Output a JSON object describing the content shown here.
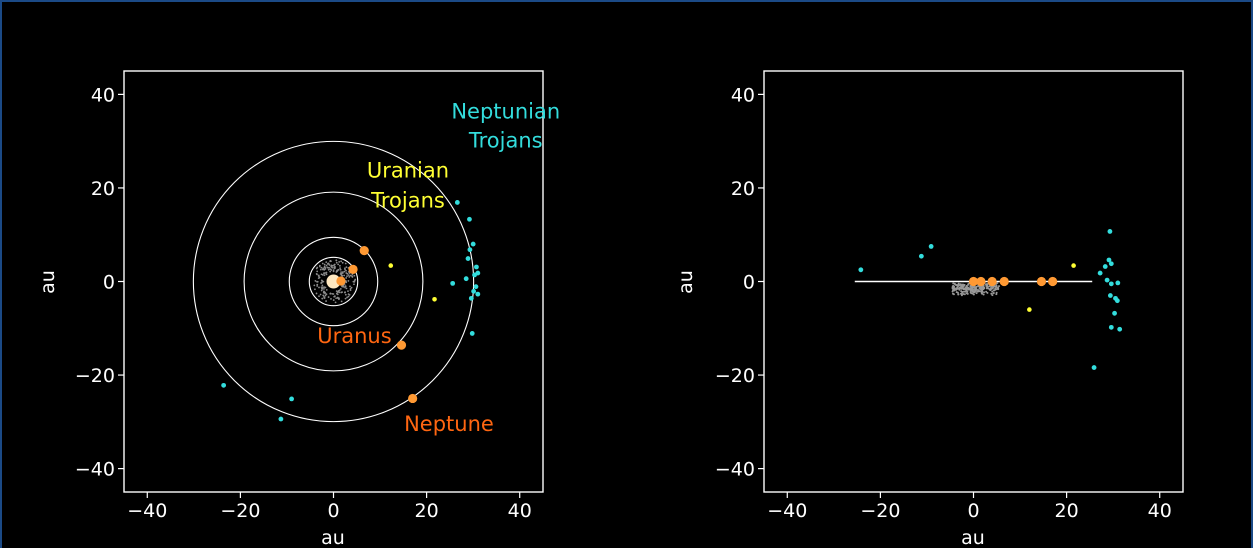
{
  "chart_data": [
    {
      "type": "scatter",
      "view": "top-down (x-y plane)",
      "xlabel": "au",
      "ylabel": "au",
      "xlim": [
        -45,
        45
      ],
      "ylim": [
        -45,
        45
      ],
      "xticks": [
        -40,
        -20,
        0,
        20,
        40
      ],
      "yticks": [
        -40,
        -20,
        0,
        20,
        40
      ],
      "grid": false,
      "orbits_au": [
        5.2,
        9.5,
        19.2,
        30.1
      ],
      "orbit_color": "#ffffff",
      "sun": {
        "x": 0,
        "y": 0,
        "color": "#ffe8c0"
      },
      "planets": [
        {
          "x": 1.6,
          "y": 0.1,
          "color": "#ff9933"
        },
        {
          "x": 4.2,
          "y": 2.6,
          "color": "#ff9933"
        },
        {
          "x": 6.6,
          "y": 6.6,
          "color": "#ff9933"
        },
        {
          "x": 14.6,
          "y": -13.6,
          "label": "Uranus",
          "color": "#ff9933"
        },
        {
          "x": 17.0,
          "y": -25.0,
          "label": "Neptune",
          "color": "#ff9933"
        }
      ],
      "uranian_trojans": {
        "color": "#ffff33",
        "points": [
          [
            12.3,
            3.4
          ],
          [
            21.7,
            -3.8
          ]
        ]
      },
      "neptunian_trojans": {
        "color": "#33dddd",
        "points": [
          [
            26.6,
            16.9
          ],
          [
            29.2,
            13.3
          ],
          [
            30.0,
            8.0
          ],
          [
            29.3,
            6.8
          ],
          [
            28.9,
            4.9
          ],
          [
            30.7,
            3.1
          ],
          [
            30.3,
            1.4
          ],
          [
            31.0,
            1.8
          ],
          [
            28.5,
            0.6
          ],
          [
            25.6,
            -0.4
          ],
          [
            30.6,
            -1.1
          ],
          [
            30.1,
            -2.1
          ],
          [
            31.0,
            -2.7
          ],
          [
            29.6,
            -3.6
          ],
          [
            29.8,
            -11.1
          ],
          [
            -23.6,
            -22.2
          ],
          [
            -9.0,
            -25.1
          ],
          [
            -11.3,
            -29.4
          ]
        ]
      },
      "annotations": [
        {
          "text": "Neptunian",
          "x": 37.0,
          "y": 34.8,
          "color": "#33dddd"
        },
        {
          "text": "Trojans",
          "x": 37.0,
          "y": 28.6,
          "color": "#33dddd"
        },
        {
          "text": "Uranian",
          "x": 16.0,
          "y": 22.2,
          "color": "#ffff33"
        },
        {
          "text": "Trojans",
          "x": 16.0,
          "y": 15.8,
          "color": "#ffff33"
        },
        {
          "text": "Uranus",
          "x": 4.5,
          "y": -13.2,
          "color": "#ff6611"
        },
        {
          "text": "Neptune",
          "x": 24.8,
          "y": -32.0,
          "color": "#ff6611"
        }
      ]
    },
    {
      "type": "scatter",
      "view": "edge-on",
      "xlabel": "au",
      "ylabel": "au",
      "xlim": [
        -45,
        45
      ],
      "ylim": [
        -45,
        45
      ],
      "xticks": [
        -40,
        -20,
        0,
        20,
        40
      ],
      "yticks": [
        -40,
        -20,
        0,
        20,
        40
      ],
      "grid": false,
      "plane_line": {
        "x": [
          -25.5,
          25.5
        ],
        "y": [
          0,
          0
        ],
        "color": "#ffffff"
      },
      "inner_cloud": {
        "color": "#999999",
        "x_range": [
          -4.5,
          5.5
        ],
        "y_range": [
          -1.5,
          1.5
        ]
      },
      "planets": [
        {
          "x": 0,
          "y": 0,
          "color": "#ff9933"
        },
        {
          "x": 1.6,
          "y": 0,
          "color": "#ff9933"
        },
        {
          "x": 4.0,
          "y": 0,
          "color": "#ff9933"
        },
        {
          "x": 6.6,
          "y": 0,
          "color": "#ff9933"
        },
        {
          "x": 14.6,
          "y": 0,
          "color": "#ff9933"
        },
        {
          "x": 17.0,
          "y": 0,
          "color": "#ff9933"
        }
      ],
      "uranian_trojans": {
        "color": "#ffff33",
        "points": [
          [
            21.5,
            3.4
          ],
          [
            12.0,
            -6.0
          ]
        ]
      },
      "neptunian_trojans": {
        "color": "#33dddd",
        "points": [
          [
            -24.2,
            2.5
          ],
          [
            -11.2,
            5.4
          ],
          [
            -9.1,
            7.5
          ],
          [
            29.3,
            10.7
          ],
          [
            29.1,
            4.6
          ],
          [
            29.6,
            3.8
          ],
          [
            28.3,
            3.2
          ],
          [
            27.2,
            1.8
          ],
          [
            28.7,
            0.3
          ],
          [
            29.6,
            -0.5
          ],
          [
            31.0,
            -0.3
          ],
          [
            29.4,
            -3.0
          ],
          [
            30.5,
            -3.6
          ],
          [
            30.9,
            -4.1
          ],
          [
            30.3,
            -6.8
          ],
          [
            29.6,
            -9.8
          ],
          [
            31.4,
            -10.2
          ],
          [
            25.9,
            -18.4
          ]
        ]
      }
    }
  ]
}
